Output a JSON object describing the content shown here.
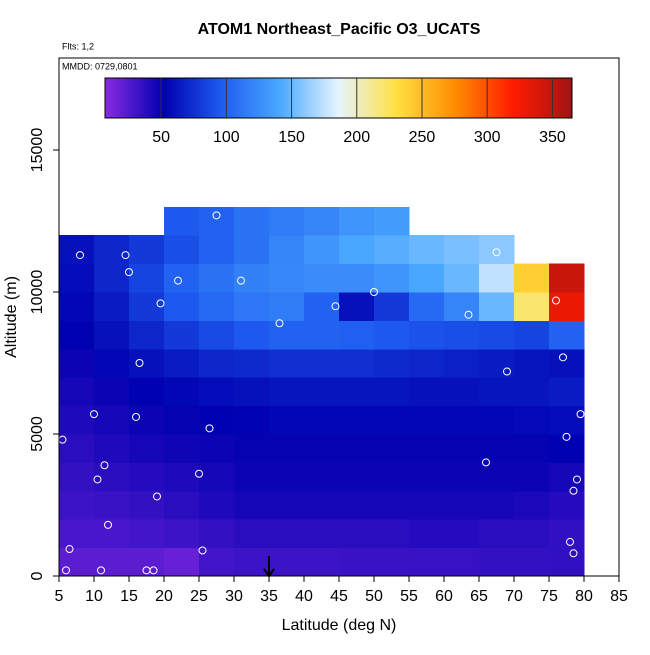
{
  "chart_data": {
    "type": "heatmap",
    "title": "ATOM1 Northeast_Pacific O3_UCATS",
    "flights_label": "Flts: 1,2",
    "dates_label": "MMDD: 0729,0801",
    "xlabel": "Latitude (deg N)",
    "ylabel": "Altitude (m)",
    "xlim": [
      5,
      85
    ],
    "ylim": [
      0,
      18240
    ],
    "xticks": [
      5,
      10,
      15,
      20,
      25,
      30,
      35,
      40,
      45,
      50,
      55,
      60,
      65,
      70,
      75,
      80,
      85
    ],
    "yticks": [
      0,
      5000,
      10000,
      15000
    ],
    "x_bins": [
      5,
      10,
      15,
      20,
      25,
      30,
      35,
      40,
      45,
      50,
      55,
      60,
      65,
      70,
      75,
      80
    ],
    "y_bins": [
      0,
      1000,
      2000,
      3000,
      4000,
      5000,
      6000,
      7000,
      8000,
      9000,
      10000,
      11000,
      12000,
      13000
    ],
    "z": [
      [
        22,
        22,
        22,
        18,
        30,
        32,
        32,
        32,
        33,
        33,
        34,
        34,
        35,
        35,
        36
      ],
      [
        28,
        28,
        30,
        32,
        35,
        38,
        38,
        38,
        38,
        38,
        40,
        40,
        38,
        38,
        36
      ],
      [
        32,
        33,
        35,
        38,
        42,
        45,
        45,
        45,
        45,
        45,
        45,
        45,
        45,
        43,
        40
      ],
      [
        35,
        38,
        40,
        42,
        45,
        48,
        48,
        48,
        48,
        48,
        48,
        48,
        48,
        48,
        45
      ],
      [
        38,
        42,
        45,
        47,
        48,
        50,
        50,
        50,
        50,
        50,
        50,
        50,
        50,
        50,
        52
      ],
      [
        42,
        45,
        48,
        50,
        52,
        53,
        55,
        55,
        55,
        55,
        55,
        55,
        55,
        56,
        58
      ],
      [
        45,
        48,
        52,
        55,
        58,
        60,
        62,
        62,
        62,
        62,
        60,
        60,
        62,
        62,
        65
      ],
      [
        48,
        55,
        60,
        65,
        70,
        72,
        75,
        75,
        75,
        72,
        70,
        68,
        65,
        62,
        60
      ],
      [
        52,
        60,
        70,
        80,
        88,
        95,
        100,
        100,
        98,
        95,
        92,
        90,
        88,
        85,
        100
      ],
      [
        55,
        65,
        80,
        95,
        105,
        112,
        115,
        100,
        60,
        80,
        105,
        120,
        150,
        220,
        330
      ],
      [
        58,
        70,
        85,
        100,
        110,
        118,
        122,
        125,
        125,
        130,
        140,
        150,
        175,
        240,
        345
      ],
      [
        60,
        70,
        80,
        90,
        100,
        110,
        120,
        130,
        140,
        145,
        150,
        155,
        160,
        null,
        null
      ],
      [
        null,
        null,
        null,
        95,
        100,
        110,
        115,
        120,
        130,
        135,
        null,
        null,
        null,
        null,
        null
      ]
    ],
    "clim": [
      7,
      365
    ],
    "cticks": [
      50,
      100,
      150,
      200,
      250,
      300,
      350
    ],
    "colorscale": [
      "#8a2be2",
      "#0000b0",
      "#1e5cf0",
      "#4aa8ff",
      "#e6f4ff",
      "#ffe040",
      "#ff8c00",
      "#ff1a00",
      "#a01414"
    ],
    "track": {
      "color": "#ffffff",
      "x": [
        5.5,
        6,
        6.5,
        8,
        10,
        10.5,
        11,
        11.5,
        12,
        14.5,
        15,
        16,
        16.5,
        17.5,
        18.5,
        19,
        19.5,
        22,
        25,
        25.5,
        26.5,
        27.5,
        31,
        36.5,
        44.5,
        50,
        63.5,
        66,
        67.5,
        69,
        76,
        77,
        77.5,
        78,
        78.5,
        78.5,
        79,
        79.5
      ],
      "y": [
        4800,
        200,
        950,
        11300,
        5700,
        3400,
        200,
        3900,
        1800,
        11300,
        10700,
        5600,
        7500,
        200,
        200,
        2800,
        9600,
        10400,
        3600,
        900,
        5200,
        12700,
        10400,
        8900,
        9500,
        10000,
        9200,
        4000,
        11400,
        7200,
        9700,
        7700,
        4900,
        1200,
        800,
        3000,
        3400,
        5700
      ]
    },
    "marker_lat": 35
  }
}
